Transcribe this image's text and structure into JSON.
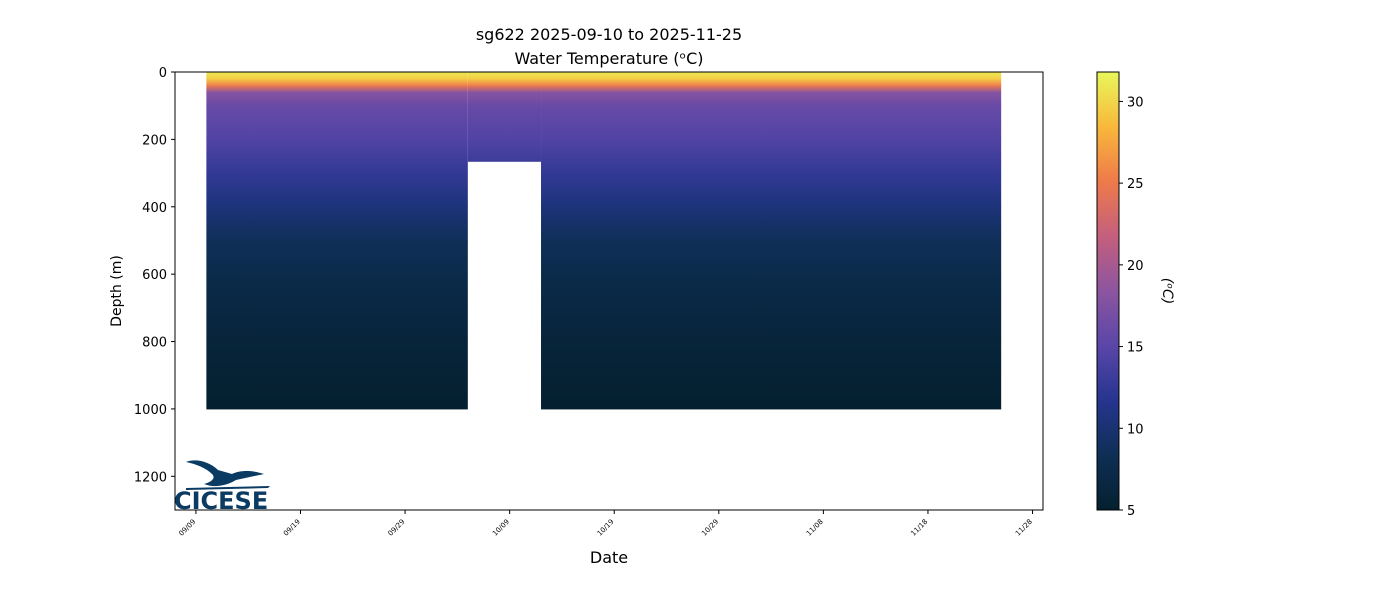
{
  "chart_data": {
    "type": "section",
    "title": "sg622 2025-09-10 to 2025-11-25",
    "subtitle": "Water Temperature (ᵒC)",
    "xlabel": "Date",
    "ylabel": "Depth (m)",
    "colorbar_label": "(ᵒC)",
    "logo_text": "CICESE",
    "xlim": [
      "09/07",
      "11/29"
    ],
    "xticks": [
      "09/09",
      "09/19",
      "09/29",
      "10/09",
      "10/19",
      "10/29",
      "11/08",
      "11/18",
      "11/28"
    ],
    "ylim": [
      0,
      1300
    ],
    "yticks": [
      0,
      200,
      400,
      600,
      800,
      1000,
      1200
    ],
    "zlim": [
      5,
      31.8
    ],
    "zticks": [
      5,
      10,
      15,
      20,
      25,
      30
    ],
    "colormap": [
      "#04202f",
      "#0e2f55",
      "#26358f",
      "#5a46a8",
      "#8c55a0",
      "#c45f7d",
      "#ee7a4a",
      "#f8b83b",
      "#e9f75b"
    ],
    "segments": [
      {
        "start": "09/10",
        "end": "10/05",
        "max_depth": 1000
      },
      {
        "start": "10/05",
        "end": "10/12",
        "max_depth": 265
      },
      {
        "start": "10/12",
        "end": "11/25",
        "max_depth": 1000
      }
    ],
    "depths": [
      0,
      20,
      40,
      60,
      100,
      200,
      300,
      400,
      500,
      600,
      800,
      1000
    ],
    "values": [
      31,
      29.5,
      25,
      18,
      16,
      14.5,
      12.5,
      10.5,
      8.5,
      7.5,
      6,
      5
    ]
  }
}
